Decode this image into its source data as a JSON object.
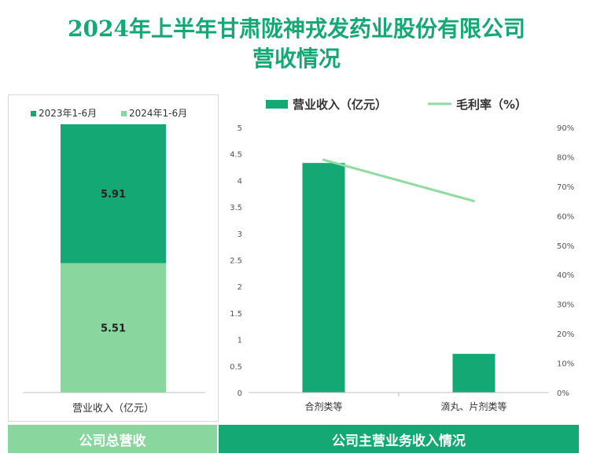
{
  "title": {
    "line1": "2024年上半年甘肃陇神戎发药业股份有限公司",
    "line2": "营收情况"
  },
  "footer": {
    "left_label": "公司总营收",
    "right_label": "公司主营业务收入情况"
  },
  "colors": {
    "dark_green": "#13a874",
    "light_green": "#89d79e",
    "line_green": "#8fdca0",
    "title_green": "#13a874"
  },
  "chart_data": [
    {
      "type": "bar",
      "stacked": true,
      "categories": [
        "营业收入（亿元）"
      ],
      "series": [
        {
          "name": "2023年1-6月",
          "values": [
            5.91
          ],
          "color": "#13a874"
        },
        {
          "name": "2024年1-6月",
          "values": [
            5.51
          ],
          "color": "#89d79e"
        }
      ],
      "legend_position": "top",
      "grid": false
    },
    {
      "type": "bar",
      "combo": "bar+line",
      "categories": [
        "合剂类等",
        "滴丸、片剂类等"
      ],
      "series": [
        {
          "name": "营业收入（亿元）",
          "kind": "bar",
          "axis": "left",
          "values": [
            4.33,
            0.73
          ],
          "color": "#13a874"
        },
        {
          "name": "毛利率（%）",
          "kind": "line",
          "axis": "right",
          "values": [
            79,
            65
          ],
          "color": "#8fdca0"
        }
      ],
      "y_left": {
        "min": 0,
        "max": 5,
        "ticks": [
          "0",
          "0.5",
          "1",
          "1.5",
          "2",
          "2.5",
          "3",
          "3.5",
          "4",
          "4.5",
          "5"
        ]
      },
      "y_right": {
        "min": 0,
        "max": 90,
        "ticks": [
          "0%",
          "10%",
          "20%",
          "30%",
          "40%",
          "50%",
          "60%",
          "70%",
          "80%",
          "90%"
        ]
      },
      "legend_position": "top",
      "grid": false
    }
  ]
}
